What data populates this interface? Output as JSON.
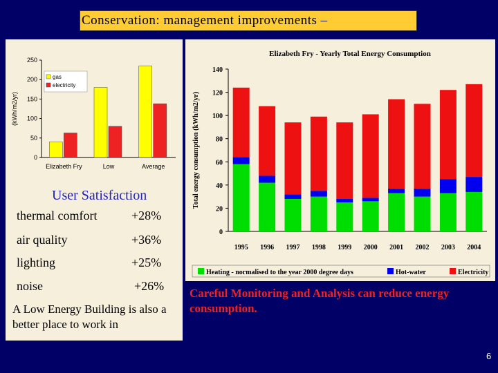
{
  "slide_title": "Conservation: management improvements –",
  "satisfaction": {
    "title": "User Satisfaction",
    "items": [
      {
        "label": "thermal comfort",
        "value": "+28%"
      },
      {
        "label": "air quality",
        "value": "+36%"
      },
      {
        "label": "lighting",
        "value": "+25%"
      },
      {
        "label": "noise",
        "value": "+26%"
      }
    ],
    "note": "A Low Energy Building is also a better place to work in"
  },
  "caption": "Careful Monitoring and Analysis can reduce energy consumption.",
  "page_number": "6",
  "chart_data": [
    {
      "type": "bar",
      "title": "",
      "ylabel": "(kWh/m2/yr)",
      "ylim": [
        0,
        250
      ],
      "yticks": [
        "0",
        "50",
        "100",
        "150",
        "200",
        "250"
      ],
      "categories": [
        "Elizabeth Fry",
        "Low",
        "Average"
      ],
      "series": [
        {
          "name": "gas",
          "color": "#ffff00",
          "values": [
            40,
            180,
            235
          ]
        },
        {
          "name": "electricity",
          "color": "#ee2222",
          "values": [
            63,
            80,
            138
          ]
        }
      ]
    },
    {
      "type": "bar",
      "stacked": true,
      "title": "Elizabeth Fry - Yearly Total Energy Consumption",
      "ylabel": "Total energy consumption (kWh/m2/yr)",
      "ylim": [
        0,
        140
      ],
      "yticks": [
        "0",
        "20",
        "40",
        "60",
        "80",
        "100",
        "120",
        "140"
      ],
      "categories": [
        "1995",
        "1996",
        "1997",
        "1998",
        "1999",
        "2000",
        "2001",
        "2002",
        "2003",
        "2004"
      ],
      "series": [
        {
          "name": "Heating - normalised to the year 2000 degree days",
          "color": "#00dd00",
          "values": [
            58,
            42,
            28,
            30,
            25,
            26,
            33,
            30,
            33,
            34
          ]
        },
        {
          "name": "Hot-water",
          "color": "#0000ee",
          "values": [
            6,
            6,
            4,
            5,
            3,
            3,
            4,
            7,
            12,
            13
          ]
        },
        {
          "name": "Electricity",
          "color": "#ee1111",
          "values": [
            60,
            60,
            62,
            64,
            66,
            72,
            77,
            73,
            77,
            80
          ]
        }
      ]
    }
  ]
}
